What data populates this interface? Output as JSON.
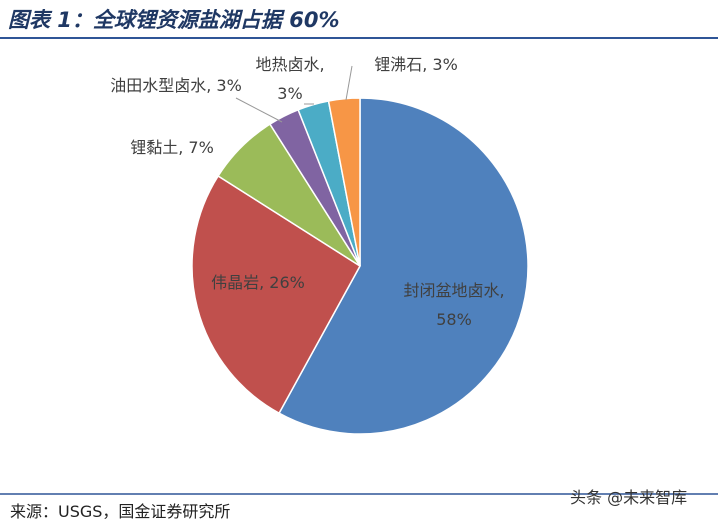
{
  "chart_data": {
    "type": "pie",
    "title": "图表 1：全球锂资源盐湖占据 60%",
    "categories": [
      "封闭盆地卤水",
      "伟晶岩",
      "锂黏土",
      "油田水型卤水",
      "地热卤水",
      "锂沸石"
    ],
    "values": [
      58,
      26,
      7,
      3,
      3,
      3
    ],
    "value_labels": [
      "封闭盆地卤水, 58%",
      "伟晶岩, 26%",
      "锂黏土, 7%",
      "油田水型卤水, 3%",
      "地热卤水, 3%",
      "锂沸石, 3%"
    ],
    "colors": [
      "#4f81bd",
      "#c0504d",
      "#9bbb59",
      "#8064a2",
      "#4bacc6",
      "#f79646"
    ],
    "source": "来源：USGS，国金证券研究所",
    "watermark": "头条 @未来智库"
  }
}
